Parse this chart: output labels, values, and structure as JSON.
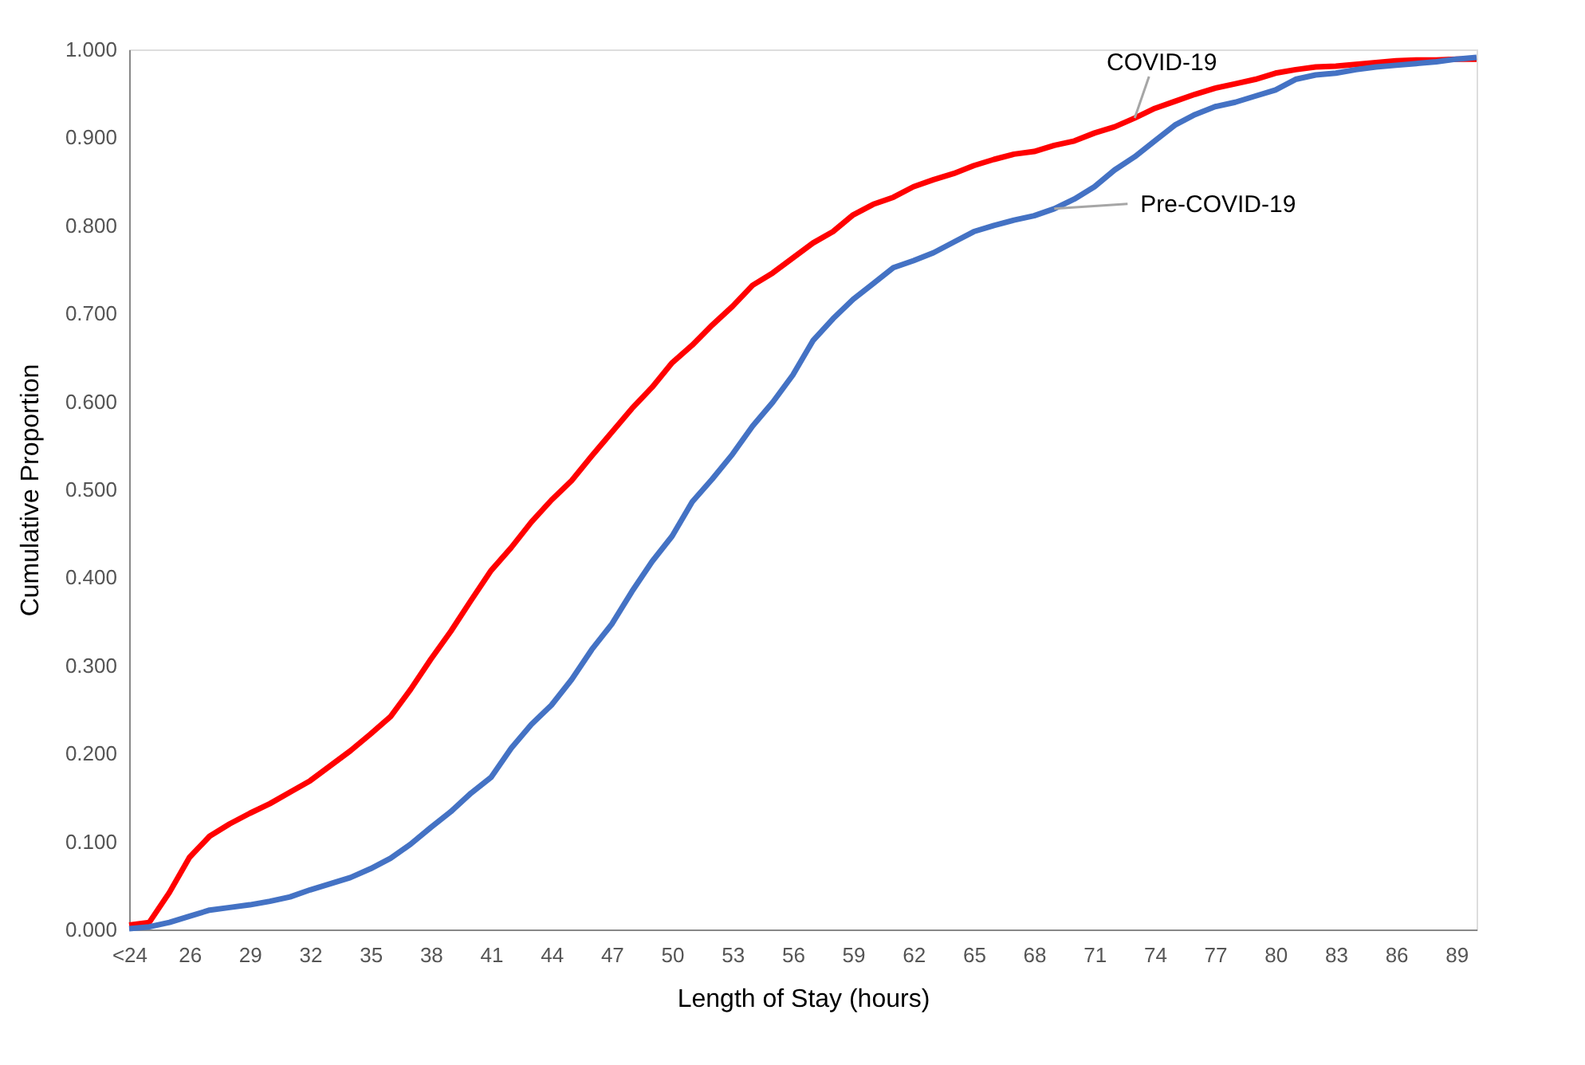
{
  "chart_data": {
    "type": "line",
    "xlabel": "Length of Stay (hours)",
    "ylabel": "Cumulative Proportion",
    "categories": [
      "<24",
      null,
      null,
      "26",
      null,
      null,
      "29",
      null,
      null,
      "32",
      null,
      null,
      "35",
      null,
      null,
      "38",
      null,
      null,
      "41",
      null,
      null,
      "44",
      null,
      null,
      "47",
      null,
      null,
      "50",
      null,
      null,
      "53",
      null,
      null,
      "56",
      null,
      null,
      "59",
      null,
      null,
      "62",
      null,
      null,
      "65",
      null,
      null,
      "68",
      null,
      null,
      "71",
      null,
      null,
      "74",
      null,
      null,
      "77",
      null,
      null,
      "80",
      null,
      null,
      "83",
      null,
      null,
      "86",
      null,
      null,
      "89",
      null
    ],
    "series": [
      {
        "name": "COVID-19",
        "color": "#ff0000",
        "values": [
          0.005,
          0.008,
          0.042,
          0.082,
          0.106,
          0.12,
          0.132,
          0.143,
          0.156,
          0.169,
          0.186,
          0.203,
          0.222,
          0.242,
          0.273,
          0.307,
          0.339,
          0.374,
          0.408,
          0.434,
          0.463,
          0.488,
          0.51,
          0.538,
          0.565,
          0.592,
          0.616,
          0.644,
          0.664,
          0.687,
          0.708,
          0.732,
          0.746,
          0.763,
          0.78,
          0.793,
          0.812,
          0.824,
          0.832,
          0.844,
          0.852,
          0.859,
          0.868,
          0.875,
          0.881,
          0.884,
          0.891,
          0.896,
          0.905,
          0.912,
          0.922,
          0.933,
          0.941,
          0.949,
          0.956,
          0.961,
          0.966,
          0.973,
          0.977,
          0.98,
          0.981,
          0.983,
          0.985,
          0.987,
          0.988,
          0.988,
          0.989,
          0.989
        ]
      },
      {
        "name": "Pre-COVID-19",
        "color": "#4472c4",
        "values": [
          0.001,
          0.003,
          0.008,
          0.015,
          0.022,
          0.025,
          0.028,
          0.032,
          0.037,
          0.045,
          0.052,
          0.059,
          0.069,
          0.081,
          0.097,
          0.116,
          0.134,
          0.155,
          0.173,
          0.206,
          0.233,
          0.255,
          0.284,
          0.318,
          0.347,
          0.384,
          0.418,
          0.447,
          0.486,
          0.512,
          0.54,
          0.572,
          0.599,
          0.63,
          0.669,
          0.694,
          0.716,
          0.734,
          0.752,
          0.76,
          0.769,
          0.781,
          0.793,
          0.8,
          0.806,
          0.811,
          0.819,
          0.83,
          0.844,
          0.863,
          0.878,
          0.896,
          0.914,
          0.926,
          0.935,
          0.94,
          0.947,
          0.954,
          0.966,
          0.971,
          0.973,
          0.977,
          0.98,
          0.982,
          0.984,
          0.986,
          0.989,
          0.991
        ]
      }
    ],
    "ylim": [
      0,
      1
    ],
    "yticks": [
      {
        "value": 0,
        "label": "0.000"
      },
      {
        "value": 0.1,
        "label": "0.100"
      },
      {
        "value": 0.2,
        "label": "0.200"
      },
      {
        "value": 0.3,
        "label": "0.300"
      },
      {
        "value": 0.4,
        "label": "0.400"
      },
      {
        "value": 0.5,
        "label": "0.500"
      },
      {
        "value": 0.6,
        "label": "0.600"
      },
      {
        "value": 0.7,
        "label": "0.700"
      },
      {
        "value": 0.8,
        "label": "0.800"
      },
      {
        "value": 0.9,
        "label": "0.900"
      },
      {
        "value": 1,
        "label": "1.000"
      }
    ],
    "grid": false,
    "legend": false,
    "marker": "none",
    "line_style": "solid"
  }
}
